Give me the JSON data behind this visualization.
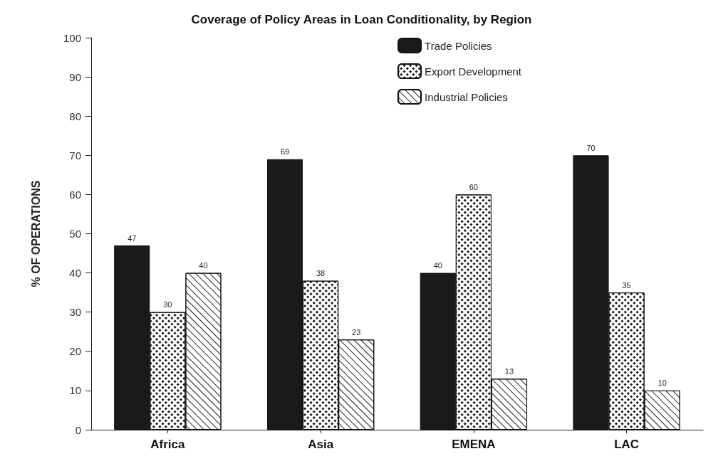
{
  "chart_data": {
    "type": "bar",
    "title": "Coverage of Policy Areas in Loan Conditionality, by Region",
    "ylabel": "% OF OPERATIONS",
    "categories": [
      "Africa",
      "Asia",
      "EMENA",
      "LAC"
    ],
    "series": [
      {
        "name": "Trade Policies",
        "color": "#1a1a1a",
        "values": [
          47,
          69,
          40,
          70
        ]
      },
      {
        "name": "Export Development",
        "color": "#ffffff",
        "values": [
          30,
          38,
          60,
          35
        ]
      },
      {
        "name": "Industrial Policies",
        "color": "#ffffff",
        "values": [
          40,
          23,
          13,
          10
        ]
      }
    ],
    "ylim": [
      0,
      100
    ],
    "yticks": [
      0,
      10,
      20,
      30,
      40,
      50,
      60,
      70,
      80,
      90,
      100
    ],
    "data_labels": true,
    "legend": "top right",
    "grid": false
  }
}
